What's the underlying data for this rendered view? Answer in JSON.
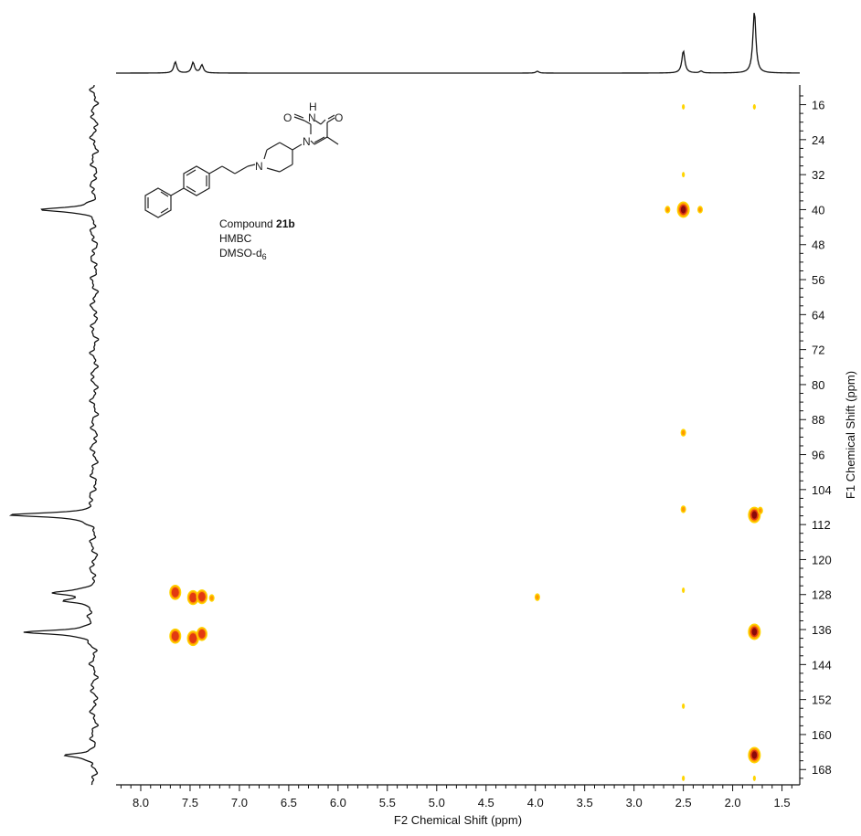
{
  "chart_data": {
    "type": "heatmap",
    "subtype": "2D NMR HMBC contour plot with 1D projections",
    "annotation": {
      "compound_prefix": "Compound ",
      "compound_id": "21b",
      "experiment": "HMBC",
      "solvent_base": "DMSO-d",
      "solvent_subscript": "6"
    },
    "molecule_labels": [
      "O",
      "O",
      "N",
      "N",
      "N",
      "H"
    ],
    "xlabel": "F2 Chemical Shift (ppm)",
    "ylabel": "F1 Chemical Shift (ppm)",
    "xlim": [
      8.25,
      1.32
    ],
    "ylim": [
      11.5,
      171.5
    ],
    "x_ticks": [
      "8.0",
      "7.5",
      "7.0",
      "6.5",
      "6.0",
      "5.5",
      "5.0",
      "4.5",
      "4.0",
      "3.5",
      "3.0",
      "2.5",
      "2.0",
      "1.5"
    ],
    "x_tick_values": [
      8.0,
      7.5,
      7.0,
      6.5,
      6.0,
      5.5,
      5.0,
      4.5,
      4.0,
      3.5,
      3.0,
      2.5,
      2.0,
      1.5
    ],
    "y_ticks": [
      "16",
      "24",
      "32",
      "40",
      "48",
      "56",
      "64",
      "72",
      "80",
      "88",
      "96",
      "104",
      "112",
      "120",
      "128",
      "136",
      "144",
      "152",
      "160",
      "168"
    ],
    "y_tick_values": [
      16,
      24,
      32,
      40,
      48,
      56,
      64,
      72,
      80,
      88,
      96,
      104,
      112,
      120,
      128,
      136,
      144,
      152,
      160,
      168
    ],
    "colors": {
      "weak": "#ffd400",
      "medium": "#ff9a00",
      "strong": "#e23a12",
      "core": "#8b0a0a",
      "trace": "#111111"
    },
    "cross_peaks": [
      {
        "f2": 2.5,
        "f1": 16.5,
        "intensity": 0.15
      },
      {
        "f2": 1.78,
        "f1": 16.5,
        "intensity": 0.15
      },
      {
        "f2": 2.5,
        "f1": 32.0,
        "intensity": 0.15
      },
      {
        "f2": 2.66,
        "f1": 40.0,
        "intensity": 0.35
      },
      {
        "f2": 2.5,
        "f1": 40.0,
        "intensity": 1.0
      },
      {
        "f2": 2.33,
        "f1": 40.0,
        "intensity": 0.35
      },
      {
        "f2": 2.5,
        "f1": 91.0,
        "intensity": 0.25
      },
      {
        "f2": 2.5,
        "f1": 108.5,
        "intensity": 0.25
      },
      {
        "f2": 1.78,
        "f1": 109.8,
        "intensity": 1.0
      },
      {
        "f2": 1.72,
        "f1": 108.8,
        "intensity": 0.3
      },
      {
        "f2": 2.5,
        "f1": 127.0,
        "intensity": 0.1
      },
      {
        "f2": 7.65,
        "f1": 127.5,
        "intensity": 0.8
      },
      {
        "f2": 7.47,
        "f1": 128.7,
        "intensity": 0.75
      },
      {
        "f2": 7.38,
        "f1": 128.5,
        "intensity": 0.7
      },
      {
        "f2": 7.28,
        "f1": 128.8,
        "intensity": 0.35
      },
      {
        "f2": 3.98,
        "f1": 128.6,
        "intensity": 0.4
      },
      {
        "f2": 7.65,
        "f1": 137.5,
        "intensity": 0.8
      },
      {
        "f2": 7.47,
        "f1": 138.0,
        "intensity": 0.85
      },
      {
        "f2": 7.38,
        "f1": 137.0,
        "intensity": 0.6
      },
      {
        "f2": 1.78,
        "f1": 136.5,
        "intensity": 1.0
      },
      {
        "f2": 2.5,
        "f1": 153.5,
        "intensity": 0.2
      },
      {
        "f2": 1.78,
        "f1": 164.7,
        "intensity": 1.0
      },
      {
        "f2": 2.5,
        "f1": 170.0,
        "intensity": 0.2
      },
      {
        "f2": 1.78,
        "f1": 170.0,
        "intensity": 0.1
      }
    ],
    "f2_projection_peaks": [
      {
        "ppm": 7.65,
        "height": 0.18
      },
      {
        "ppm": 7.47,
        "height": 0.17
      },
      {
        "ppm": 7.38,
        "height": 0.13
      },
      {
        "ppm": 3.98,
        "height": 0.03
      },
      {
        "ppm": 2.5,
        "height": 0.36
      },
      {
        "ppm": 2.32,
        "height": 0.03
      },
      {
        "ppm": 1.78,
        "height": 1.0
      }
    ],
    "f1_projection_peaks": [
      {
        "ppm": 40.0,
        "height": 0.62
      },
      {
        "ppm": 109.8,
        "height": 1.0
      },
      {
        "ppm": 127.6,
        "height": 0.46
      },
      {
        "ppm": 129.5,
        "height": 0.36
      },
      {
        "ppm": 136.6,
        "height": 0.85
      },
      {
        "ppm": 164.7,
        "height": 0.34
      }
    ]
  }
}
